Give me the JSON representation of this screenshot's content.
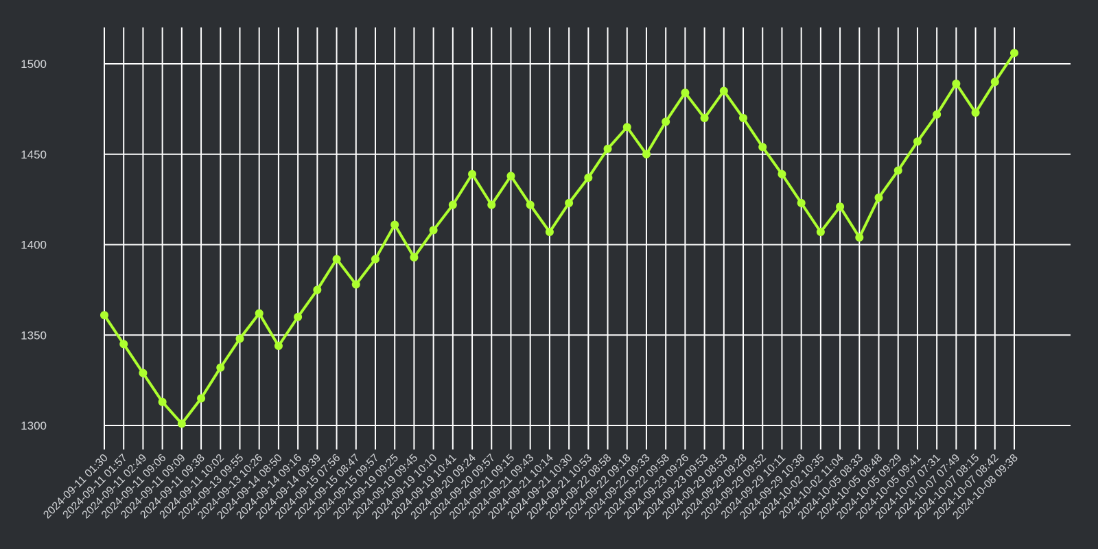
{
  "chart_data": {
    "type": "line",
    "title": "",
    "xlabel": "",
    "ylabel": "",
    "ylim": [
      1280,
      1520
    ],
    "y_ticks": [
      1300,
      1350,
      1400,
      1450,
      1500
    ],
    "grid": true,
    "colors": {
      "background": "#2c2f33",
      "series": "#adff2f",
      "grid": "#ffffff",
      "text": "#d3d5d8"
    },
    "x": [
      "2024-09-11 01:30",
      "2024-09-11 01:57",
      "2024-09-11 02:49",
      "2024-09-11 09:06",
      "2024-09-11 09:09",
      "2024-09-11 09:38",
      "2024-09-11 10:02",
      "2024-09-13 09:55",
      "2024-09-13 10:26",
      "2024-09-14 08:50",
      "2024-09-14 09:16",
      "2024-09-14 09:39",
      "2024-09-15 07:56",
      "2024-09-15 08:47",
      "2024-09-15 09:57",
      "2024-09-19 09:25",
      "2024-09-19 09:45",
      "2024-09-19 10:10",
      "2024-09-19 10:41",
      "2024-09-20 09:24",
      "2024-09-20 09:57",
      "2024-09-21 09:15",
      "2024-09-21 09:43",
      "2024-09-21 10:14",
      "2024-09-21 10:30",
      "2024-09-21 10:53",
      "2024-09-22 08:58",
      "2024-09-22 09:18",
      "2024-09-22 09:33",
      "2024-09-22 09:58",
      "2024-09-23 09:26",
      "2024-09-23 09:53",
      "2024-09-29 08:53",
      "2024-09-29 09:28",
      "2024-09-29 09:52",
      "2024-09-29 10:11",
      "2024-09-29 10:38",
      "2024-10-02 10:35",
      "2024-10-02 11:04",
      "2024-10-05 08:33",
      "2024-10-05 08:48",
      "2024-10-05 09:29",
      "2024-10-05 09:41",
      "2024-10-07 07:31",
      "2024-10-07 07:49",
      "2024-10-07 08:15",
      "2024-10-07 08:42",
      "2024-10-08 09:38"
    ],
    "series": [
      {
        "values": [
          1361,
          1345,
          1329,
          1313,
          1301,
          1315,
          1332,
          1348,
          1362,
          1344,
          1360,
          1375,
          1392,
          1378,
          1392,
          1411,
          1393,
          1408,
          1422,
          1439,
          1422,
          1438,
          1422,
          1407,
          1423,
          1437,
          1453,
          1465,
          1450,
          1468,
          1484,
          1470,
          1485,
          1470,
          1454,
          1439,
          1423,
          1407,
          1421,
          1404,
          1426,
          1441,
          1457,
          1472,
          1489,
          1473,
          1490,
          1506
        ]
      }
    ]
  }
}
